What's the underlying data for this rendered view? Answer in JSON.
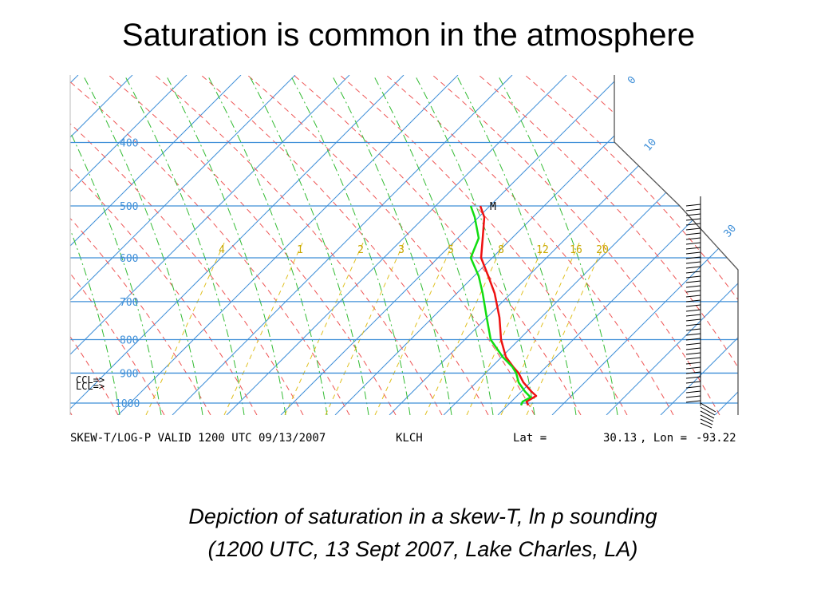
{
  "slide": {
    "title": "Saturation is common in the atmosphere",
    "caption_line_1": "Depiction of saturation in a skew-T, ln p sounding",
    "caption_line_2": "(1200 UTC, 13 Sept 2007, Lake Charles, LA)"
  },
  "colors": {
    "isobar": "#3f8fd8",
    "isotherm": "#3f8fd8",
    "dry_adiabat": "#ee5555",
    "moist_adiabat": "#33bb33",
    "mixing_ratio": "#e0c020",
    "temperature": "#ee1111",
    "dewpoint": "#11dd11",
    "wind_barbs": "#000000"
  },
  "chart_data": {
    "type": "line",
    "footer": {
      "left": "SKEW-T/LOG-P VALID 1200 UTC 09/13/2007",
      "station": "KLCH",
      "lat_label": "Lat =",
      "lat": "30.13",
      "lon_label": ", Lon =",
      "lon": "-93.22"
    },
    "pressure_levels": [
      {
        "label": "400",
        "p": 400
      },
      {
        "label": "500",
        "p": 500
      },
      {
        "label": "600",
        "p": 600
      },
      {
        "label": "700",
        "p": 700
      },
      {
        "label": "800",
        "p": 800
      },
      {
        "label": "900",
        "p": 900
      },
      {
        "label": "1000",
        "p": 1000
      }
    ],
    "height_scale_labels": [
      {
        "label": "0"
      },
      {
        "label": "10"
      },
      {
        "label": "30"
      }
    ],
    "mixing_ratio_labels": [
      "4",
      "1",
      "2",
      "3",
      "5",
      "8",
      "12",
      "16",
      "20"
    ],
    "annotations": {
      "level_markers": "CCL=>\nLCL=>",
      "max_marker": "M"
    },
    "series": [
      {
        "kind": "temperature",
        "points": [
          {
            "p": 500,
            "x": 602
          },
          {
            "p": 520,
            "x": 607
          },
          {
            "p": 560,
            "x": 605
          },
          {
            "p": 600,
            "x": 603
          },
          {
            "p": 640,
            "x": 612
          },
          {
            "p": 680,
            "x": 620
          },
          {
            "p": 740,
            "x": 626
          },
          {
            "p": 800,
            "x": 628
          },
          {
            "p": 850,
            "x": 634
          },
          {
            "p": 880,
            "x": 643
          },
          {
            "p": 900,
            "x": 650
          },
          {
            "p": 930,
            "x": 656
          },
          {
            "p": 960,
            "x": 666
          },
          {
            "p": 975,
            "x": 672
          },
          {
            "p": 985,
            "x": 666
          },
          {
            "p": 995,
            "x": 660
          },
          {
            "p": 1008,
            "x": 662
          }
        ]
      },
      {
        "kind": "dewpoint",
        "points": [
          {
            "p": 500,
            "x": 590
          },
          {
            "p": 520,
            "x": 595
          },
          {
            "p": 560,
            "x": 600
          },
          {
            "p": 600,
            "x": 590
          },
          {
            "p": 640,
            "x": 600
          },
          {
            "p": 680,
            "x": 605
          },
          {
            "p": 740,
            "x": 610
          },
          {
            "p": 800,
            "x": 615
          },
          {
            "p": 850,
            "x": 630
          },
          {
            "p": 880,
            "x": 642
          },
          {
            "p": 900,
            "x": 647
          },
          {
            "p": 930,
            "x": 650
          },
          {
            "p": 960,
            "x": 658
          },
          {
            "p": 980,
            "x": 665
          },
          {
            "p": 995,
            "x": 655
          },
          {
            "p": 1008,
            "x": 653
          }
        ]
      }
    ],
    "wind_barbs": {
      "p_range": [
        500,
        1010
      ],
      "description": "dense column of wind barbs along the right edge"
    }
  }
}
